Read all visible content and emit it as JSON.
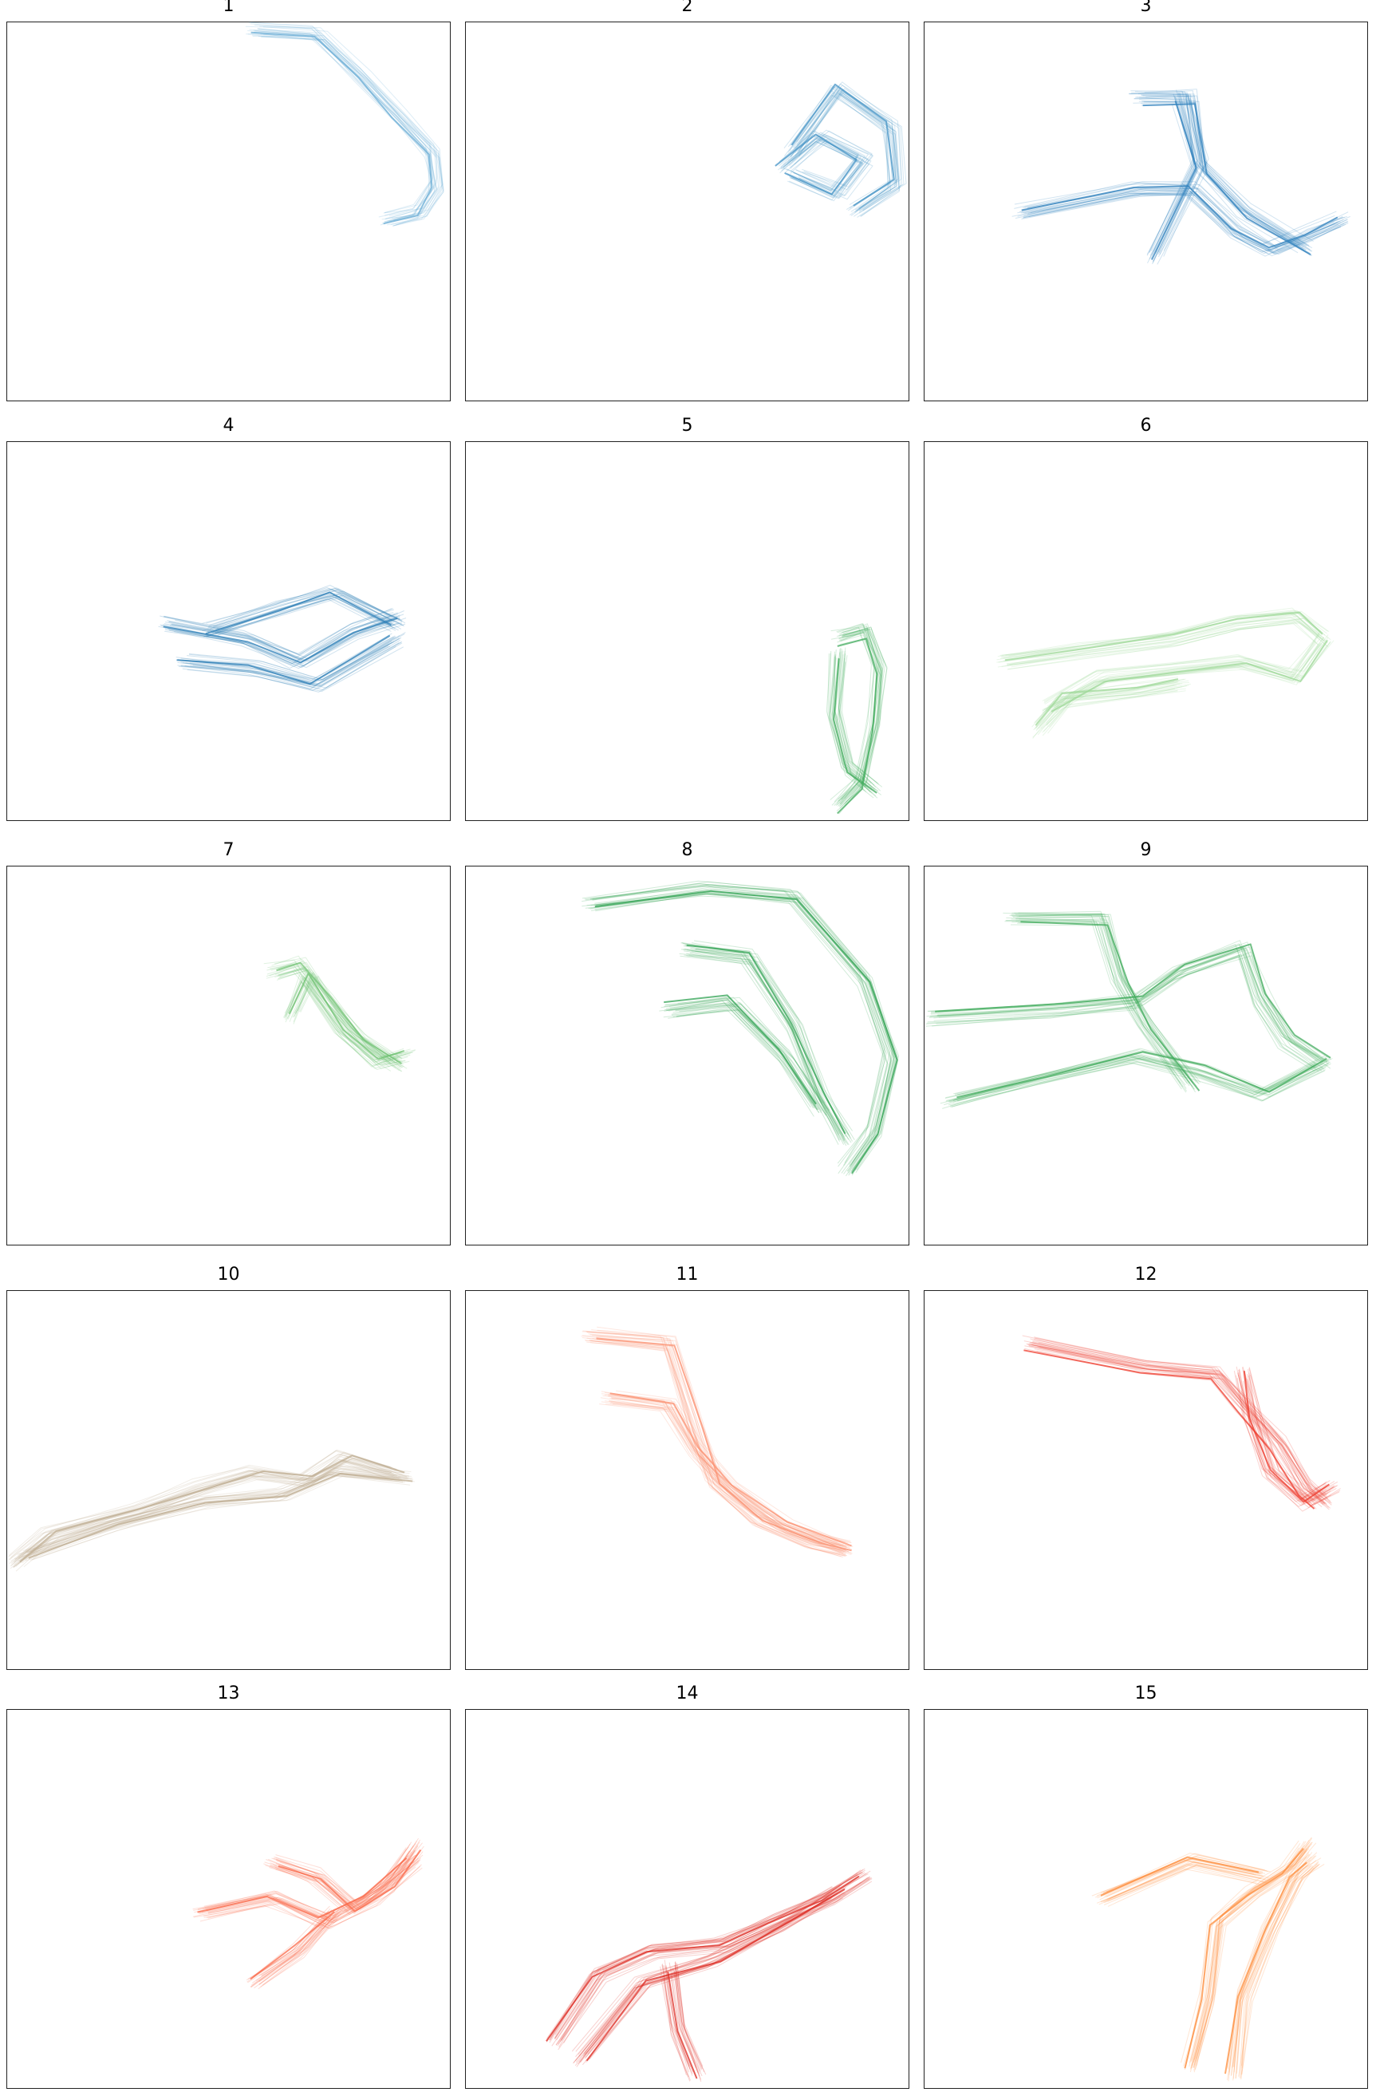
{
  "chart_data": [
    {
      "type": "line",
      "title": "1",
      "color": "#6baed6",
      "routes": [
        [
          [
            0.56,
            0.02
          ],
          [
            0.7,
            0.03
          ],
          [
            0.8,
            0.14
          ],
          [
            0.88,
            0.24
          ],
          [
            0.96,
            0.34
          ],
          [
            0.97,
            0.43
          ],
          [
            0.93,
            0.5
          ],
          [
            0.86,
            0.52
          ]
        ]
      ]
    },
    {
      "type": "line",
      "title": "2",
      "color": "#4292c6",
      "routes": [
        [
          [
            0.74,
            0.34
          ],
          [
            0.84,
            0.18
          ],
          [
            0.96,
            0.28
          ],
          [
            0.97,
            0.43
          ],
          [
            0.88,
            0.5
          ]
        ],
        [
          [
            0.72,
            0.38
          ],
          [
            0.8,
            0.3
          ],
          [
            0.9,
            0.36
          ],
          [
            0.84,
            0.45
          ],
          [
            0.74,
            0.4
          ]
        ]
      ]
    },
    {
      "type": "line",
      "title": "3",
      "color": "#3182bd",
      "routes": [
        [
          [
            0.22,
            0.5
          ],
          [
            0.48,
            0.44
          ],
          [
            0.6,
            0.44
          ],
          [
            0.7,
            0.55
          ],
          [
            0.78,
            0.6
          ],
          [
            0.86,
            0.56
          ],
          [
            0.94,
            0.52
          ]
        ],
        [
          [
            0.48,
            0.2
          ],
          [
            0.6,
            0.2
          ],
          [
            0.62,
            0.38
          ],
          [
            0.72,
            0.5
          ],
          [
            0.86,
            0.6
          ]
        ],
        [
          [
            0.52,
            0.62
          ],
          [
            0.62,
            0.38
          ],
          [
            0.58,
            0.2
          ]
        ]
      ]
    },
    {
      "type": "line",
      "title": "4",
      "color": "#2c7fb8",
      "routes": [
        [
          [
            0.36,
            0.48
          ],
          [
            0.54,
            0.52
          ],
          [
            0.66,
            0.58
          ],
          [
            0.78,
            0.5
          ],
          [
            0.88,
            0.46
          ]
        ],
        [
          [
            0.4,
            0.58
          ],
          [
            0.56,
            0.6
          ],
          [
            0.7,
            0.64
          ],
          [
            0.88,
            0.52
          ]
        ],
        [
          [
            0.46,
            0.5
          ],
          [
            0.62,
            0.44
          ],
          [
            0.74,
            0.4
          ],
          [
            0.88,
            0.48
          ]
        ]
      ]
    },
    {
      "type": "line",
      "title": "5",
      "color": "#41ab5d",
      "routes": [
        [
          [
            0.84,
            0.52
          ],
          [
            0.9,
            0.5
          ],
          [
            0.93,
            0.6
          ],
          [
            0.92,
            0.75
          ],
          [
            0.89,
            0.9
          ],
          [
            0.84,
            0.96
          ]
        ],
        [
          [
            0.84,
            0.56
          ],
          [
            0.83,
            0.72
          ],
          [
            0.86,
            0.86
          ],
          [
            0.92,
            0.92
          ]
        ]
      ]
    },
    {
      "type": "line",
      "title": "6",
      "color": "#a1d99b",
      "routes": [
        [
          [
            0.18,
            0.58
          ],
          [
            0.36,
            0.55
          ],
          [
            0.56,
            0.52
          ],
          [
            0.7,
            0.48
          ],
          [
            0.84,
            0.46
          ],
          [
            0.9,
            0.52
          ]
        ],
        [
          [
            0.28,
            0.7
          ],
          [
            0.4,
            0.62
          ],
          [
            0.56,
            0.6
          ],
          [
            0.72,
            0.58
          ],
          [
            0.84,
            0.62
          ],
          [
            0.9,
            0.52
          ]
        ],
        [
          [
            0.26,
            0.76
          ],
          [
            0.32,
            0.68
          ],
          [
            0.48,
            0.66
          ],
          [
            0.58,
            0.64
          ]
        ]
      ]
    },
    {
      "type": "line",
      "title": "7",
      "color": "#74c476",
      "routes": [
        [
          [
            0.6,
            0.28
          ],
          [
            0.66,
            0.26
          ],
          [
            0.72,
            0.35
          ],
          [
            0.8,
            0.46
          ],
          [
            0.88,
            0.52
          ]
        ],
        [
          [
            0.64,
            0.4
          ],
          [
            0.68,
            0.3
          ],
          [
            0.76,
            0.44
          ],
          [
            0.84,
            0.52
          ],
          [
            0.9,
            0.5
          ]
        ]
      ]
    },
    {
      "type": "line",
      "title": "8",
      "color": "#31a354",
      "routes": [
        [
          [
            0.28,
            0.1
          ],
          [
            0.54,
            0.06
          ],
          [
            0.74,
            0.08
          ],
          [
            0.9,
            0.3
          ],
          [
            0.96,
            0.5
          ],
          [
            0.92,
            0.7
          ],
          [
            0.86,
            0.8
          ]
        ],
        [
          [
            0.5,
            0.22
          ],
          [
            0.64,
            0.24
          ],
          [
            0.74,
            0.42
          ],
          [
            0.8,
            0.6
          ],
          [
            0.86,
            0.72
          ]
        ],
        [
          [
            0.46,
            0.38
          ],
          [
            0.6,
            0.36
          ],
          [
            0.72,
            0.5
          ],
          [
            0.8,
            0.64
          ]
        ]
      ]
    },
    {
      "type": "line",
      "title": "9",
      "color": "#41ab5d",
      "routes": [
        [
          [
            0.02,
            0.4
          ],
          [
            0.3,
            0.38
          ],
          [
            0.48,
            0.36
          ],
          [
            0.58,
            0.28
          ],
          [
            0.72,
            0.22
          ],
          [
            0.76,
            0.35
          ],
          [
            0.82,
            0.46
          ],
          [
            0.9,
            0.52
          ]
        ],
        [
          [
            0.06,
            0.62
          ],
          [
            0.26,
            0.56
          ],
          [
            0.48,
            0.5
          ],
          [
            0.62,
            0.54
          ],
          [
            0.76,
            0.6
          ],
          [
            0.9,
            0.52
          ]
        ],
        [
          [
            0.2,
            0.14
          ],
          [
            0.4,
            0.14
          ],
          [
            0.44,
            0.3
          ],
          [
            0.5,
            0.42
          ],
          [
            0.6,
            0.58
          ]
        ]
      ]
    },
    {
      "type": "line",
      "title": "10",
      "color": "#bfae92",
      "routes": [
        [
          [
            0.02,
            0.72
          ],
          [
            0.1,
            0.64
          ],
          [
            0.3,
            0.58
          ],
          [
            0.44,
            0.52
          ],
          [
            0.56,
            0.48
          ],
          [
            0.68,
            0.5
          ],
          [
            0.76,
            0.44
          ],
          [
            0.88,
            0.48
          ]
        ],
        [
          [
            0.04,
            0.7
          ],
          [
            0.24,
            0.62
          ],
          [
            0.44,
            0.56
          ],
          [
            0.62,
            0.54
          ],
          [
            0.74,
            0.48
          ],
          [
            0.9,
            0.5
          ]
        ]
      ]
    },
    {
      "type": "line",
      "title": "11",
      "color": "#fc9272",
      "routes": [
        [
          [
            0.28,
            0.12
          ],
          [
            0.46,
            0.14
          ],
          [
            0.52,
            0.36
          ],
          [
            0.56,
            0.5
          ],
          [
            0.66,
            0.6
          ],
          [
            0.78,
            0.66
          ],
          [
            0.86,
            0.68
          ]
        ],
        [
          [
            0.32,
            0.28
          ],
          [
            0.46,
            0.3
          ],
          [
            0.52,
            0.42
          ],
          [
            0.6,
            0.52
          ],
          [
            0.72,
            0.62
          ],
          [
            0.86,
            0.68
          ]
        ]
      ]
    },
    {
      "type": "line",
      "title": "12",
      "color": "#ef3b2c",
      "routes": [
        [
          [
            0.24,
            0.14
          ],
          [
            0.5,
            0.2
          ],
          [
            0.66,
            0.22
          ],
          [
            0.72,
            0.3
          ],
          [
            0.8,
            0.4
          ],
          [
            0.86,
            0.52
          ],
          [
            0.9,
            0.56
          ]
        ],
        [
          [
            0.72,
            0.22
          ],
          [
            0.74,
            0.34
          ],
          [
            0.78,
            0.48
          ],
          [
            0.86,
            0.56
          ],
          [
            0.92,
            0.52
          ]
        ]
      ]
    },
    {
      "type": "line",
      "title": "13",
      "color": "#fb6a4a",
      "routes": [
        [
          [
            0.44,
            0.54
          ],
          [
            0.6,
            0.5
          ],
          [
            0.72,
            0.56
          ],
          [
            0.82,
            0.5
          ],
          [
            0.92,
            0.4
          ]
        ],
        [
          [
            0.6,
            0.4
          ],
          [
            0.7,
            0.44
          ],
          [
            0.78,
            0.52
          ],
          [
            0.86,
            0.46
          ],
          [
            0.92,
            0.36
          ]
        ],
        [
          [
            0.56,
            0.72
          ],
          [
            0.66,
            0.64
          ],
          [
            0.74,
            0.54
          ]
        ]
      ]
    },
    {
      "type": "line",
      "title": "14",
      "color": "#de2d26",
      "routes": [
        [
          [
            0.2,
            0.88
          ],
          [
            0.3,
            0.7
          ],
          [
            0.42,
            0.64
          ],
          [
            0.58,
            0.62
          ],
          [
            0.7,
            0.56
          ],
          [
            0.82,
            0.5
          ],
          [
            0.9,
            0.44
          ]
        ],
        [
          [
            0.26,
            0.92
          ],
          [
            0.4,
            0.72
          ],
          [
            0.56,
            0.66
          ],
          [
            0.7,
            0.58
          ],
          [
            0.84,
            0.48
          ]
        ],
        [
          [
            0.46,
            0.68
          ],
          [
            0.48,
            0.84
          ],
          [
            0.52,
            0.96
          ]
        ]
      ]
    },
    {
      "type": "line",
      "title": "15",
      "color": "#fd8d3c",
      "routes": [
        [
          [
            0.6,
            0.94
          ],
          [
            0.64,
            0.76
          ],
          [
            0.66,
            0.56
          ],
          [
            0.74,
            0.48
          ],
          [
            0.82,
            0.42
          ],
          [
            0.86,
            0.36
          ]
        ],
        [
          [
            0.7,
            0.96
          ],
          [
            0.72,
            0.76
          ],
          [
            0.78,
            0.58
          ],
          [
            0.84,
            0.44
          ],
          [
            0.88,
            0.4
          ]
        ],
        [
          [
            0.4,
            0.5
          ],
          [
            0.6,
            0.4
          ],
          [
            0.76,
            0.44
          ]
        ]
      ]
    }
  ]
}
